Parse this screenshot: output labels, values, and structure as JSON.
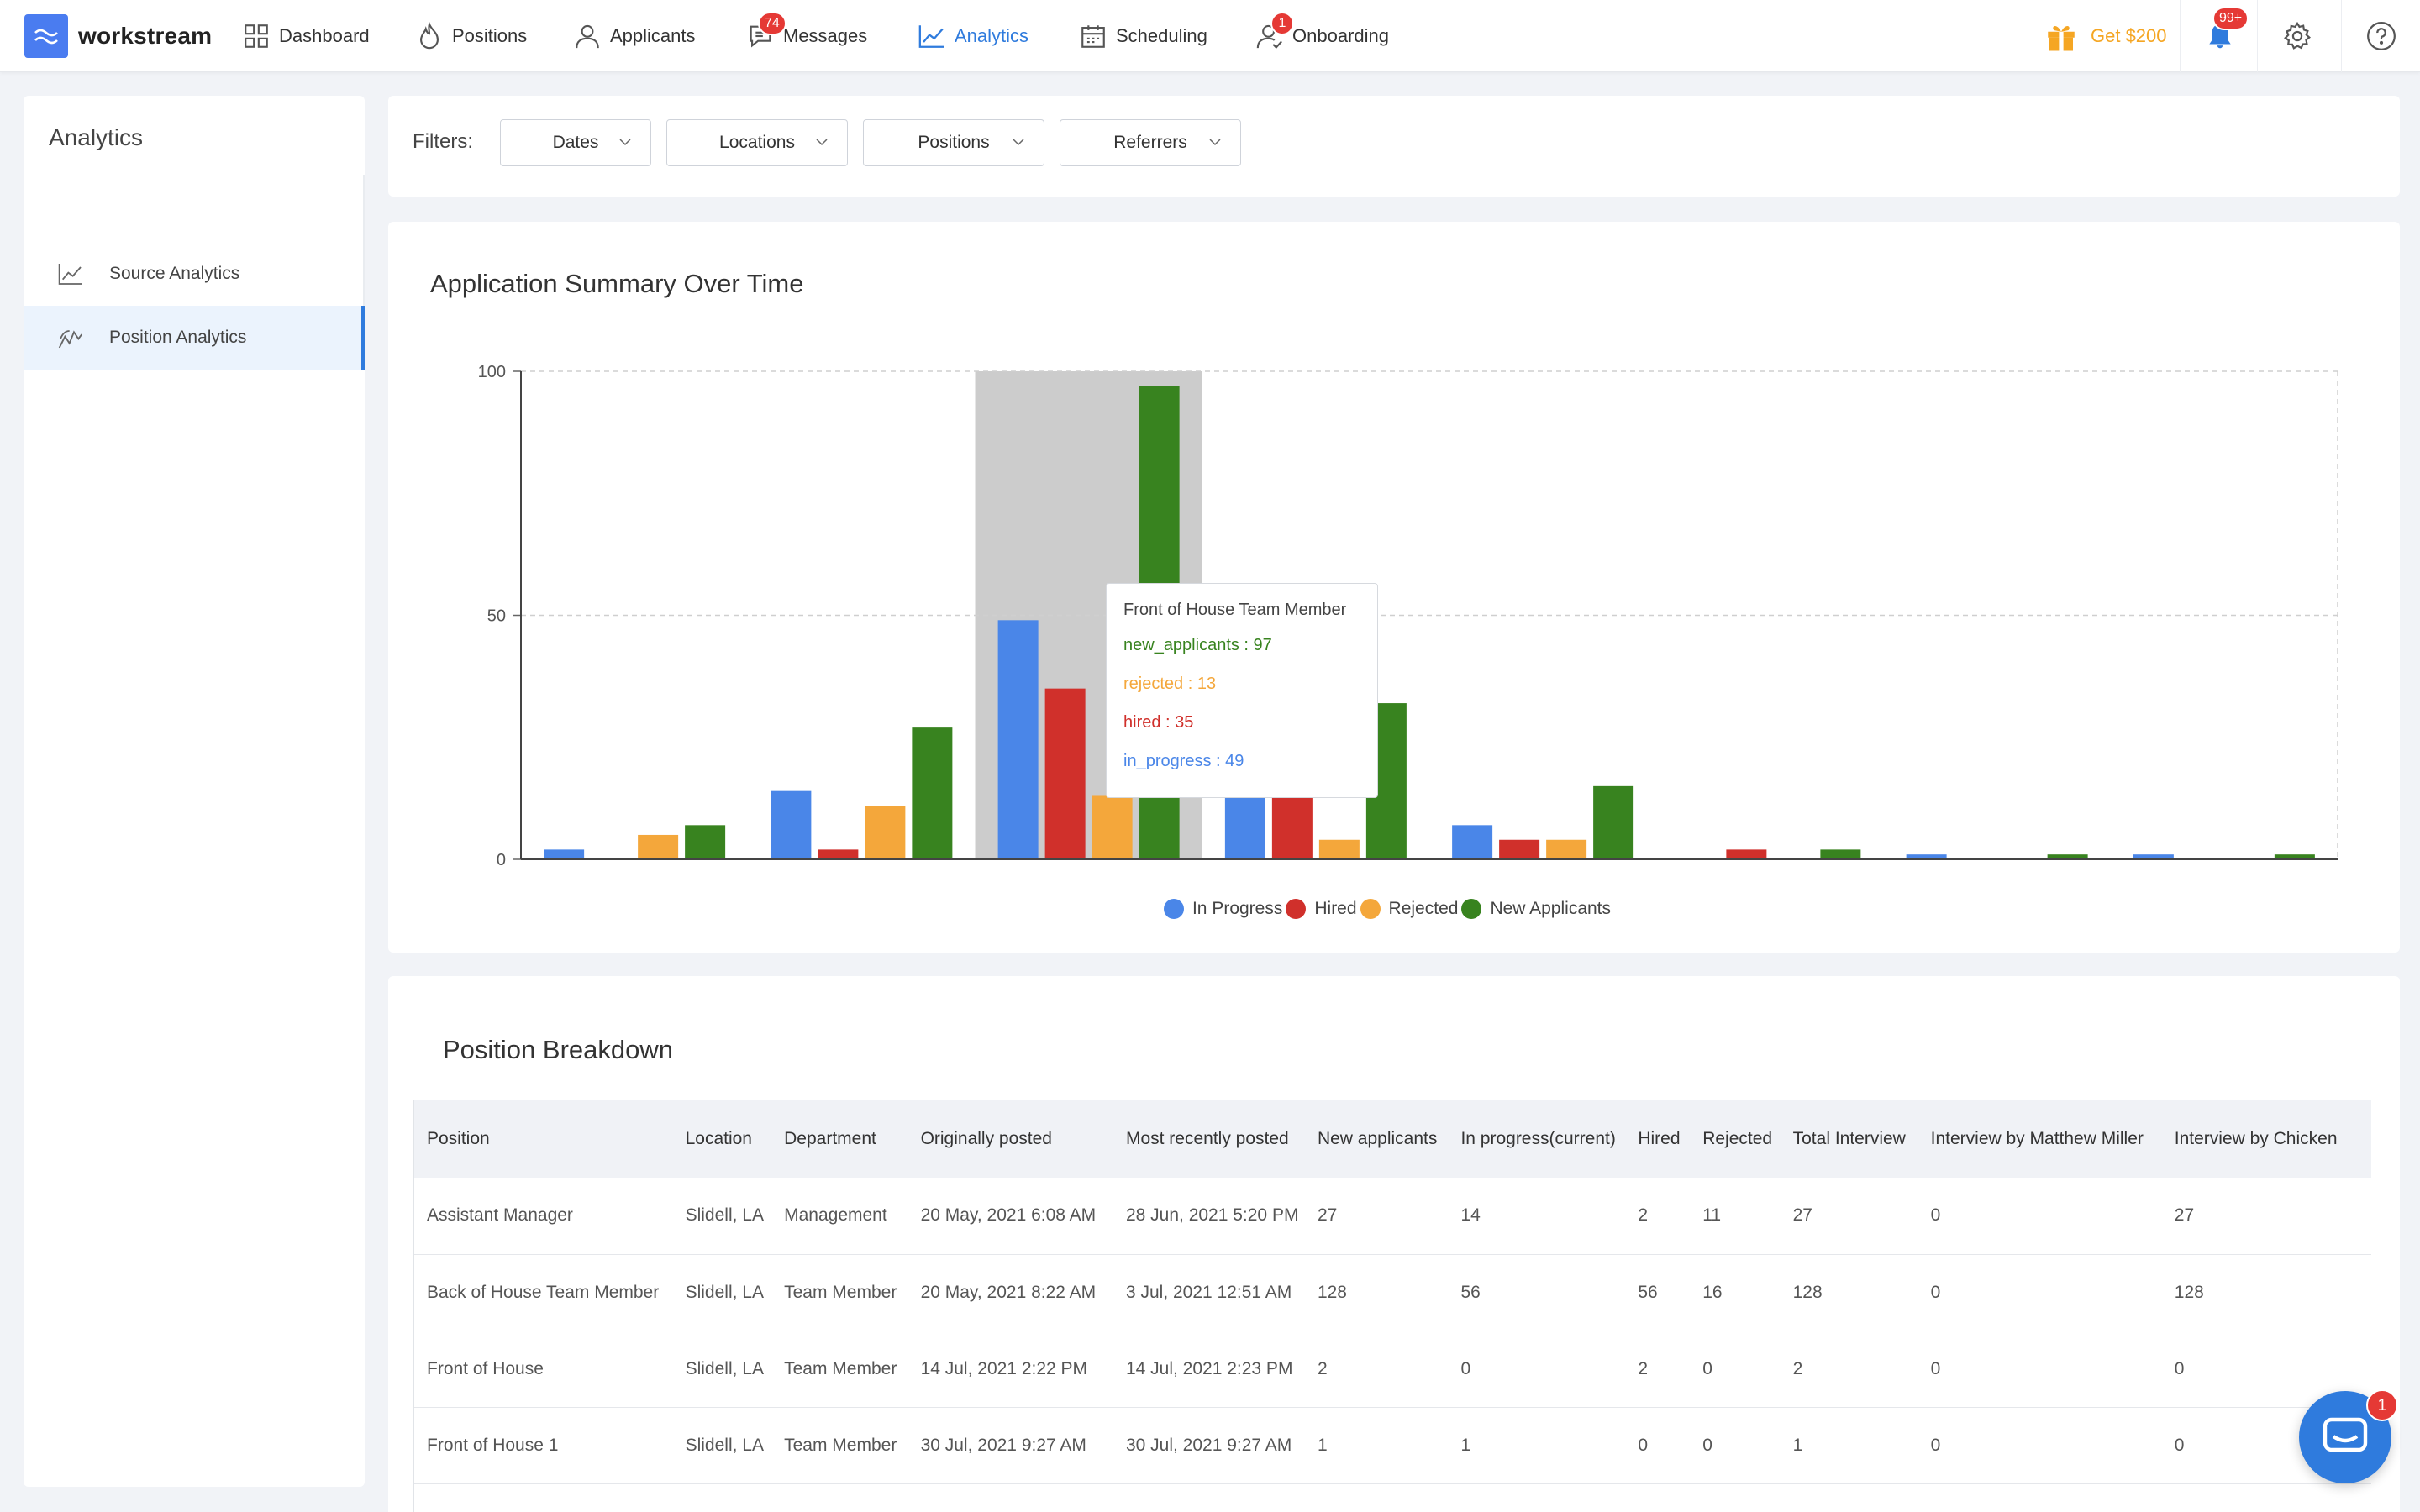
{
  "brand": {
    "name": "workstream"
  },
  "nav": {
    "items": [
      {
        "label": "Dashboard",
        "icon": "dashboard-icon"
      },
      {
        "label": "Positions",
        "icon": "flame-icon"
      },
      {
        "label": "Applicants",
        "icon": "user-icon"
      },
      {
        "label": "Messages",
        "icon": "chat-icon",
        "badge": "74"
      },
      {
        "label": "Analytics",
        "icon": "line-chart-icon",
        "active": true
      },
      {
        "label": "Scheduling",
        "icon": "calendar-icon"
      },
      {
        "label": "Onboarding",
        "icon": "user-check-icon",
        "badge": "1"
      }
    ],
    "promo_label": "Get $200",
    "notifications_badge": "99+"
  },
  "sidebar": {
    "title": "Analytics",
    "items": [
      {
        "label": "Source Analytics",
        "icon": "line-chart-icon"
      },
      {
        "label": "Position Analytics",
        "icon": "trend-icon",
        "active": true
      }
    ]
  },
  "filters": {
    "label": "Filters:",
    "dropdowns": [
      "Dates",
      "Locations",
      "Positions",
      "Referrers"
    ]
  },
  "chart_data": {
    "type": "bar",
    "title": "Application Summary Over Time",
    "xlabel": "",
    "ylabel": "",
    "ylim": [
      0,
      100
    ],
    "yticks": [
      0,
      50,
      100
    ],
    "grid": true,
    "legend_position": "bottom",
    "categories": [
      "",
      "",
      "Front of House Team Member",
      "",
      "",
      "",
      "",
      ""
    ],
    "highlight_index": 2,
    "series": [
      {
        "name": "In Progress",
        "color": "#4a86e8",
        "values": [
          2,
          14,
          49,
          13,
          7,
          0,
          1,
          1
        ]
      },
      {
        "name": "Hired",
        "color": "#d0302b",
        "values": [
          0,
          2,
          35,
          13,
          4,
          2,
          0,
          0
        ]
      },
      {
        "name": "Rejected",
        "color": "#f4a73b",
        "values": [
          5,
          11,
          13,
          4,
          4,
          0,
          0,
          0
        ]
      },
      {
        "name": "New Applicants",
        "color": "#38831f",
        "values": [
          7,
          27,
          97,
          32,
          15,
          2,
          1,
          1
        ]
      }
    ],
    "tooltip": {
      "title": "Front of House Team Member",
      "lines": [
        {
          "text": "new_applicants : 97",
          "color": "#38831f"
        },
        {
          "text": "rejected : 13",
          "color": "#f4a73b"
        },
        {
          "text": "hired : 35",
          "color": "#d0302b"
        },
        {
          "text": "in_progress : 49",
          "color": "#4a86e8"
        }
      ]
    }
  },
  "breakdown": {
    "title": "Position Breakdown",
    "columns": [
      "Position",
      "Location",
      "Department",
      "Originally posted",
      "Most recently posted",
      "New applicants",
      "In progress(current)",
      "Hired",
      "Rejected",
      "Total Interview",
      "Interview by Matthew Miller",
      "Interview by Chicken"
    ],
    "rows": [
      [
        "Assistant Manager",
        "Slidell, LA",
        "Management",
        "20 May, 2021 6:08 AM",
        "28 Jun, 2021 5:20 PM",
        "27",
        "14",
        "2",
        "11",
        "27",
        "0",
        "27"
      ],
      [
        "Back of House Team Member",
        "Slidell, LA",
        "Team Member",
        "20 May, 2021 8:22 AM",
        "3 Jul, 2021 12:51 AM",
        "128",
        "56",
        "56",
        "16",
        "128",
        "0",
        "128"
      ],
      [
        "Front of House",
        "Slidell, LA",
        "Team Member",
        "14 Jul, 2021 2:22 PM",
        "14 Jul, 2021 2:23 PM",
        "2",
        "0",
        "2",
        "0",
        "2",
        "0",
        "0"
      ],
      [
        "Front of House 1",
        "Slidell, LA",
        "Team Member",
        "30 Jul, 2021 9:27 AM",
        "30 Jul, 2021 9:27 AM",
        "1",
        "1",
        "0",
        "0",
        "1",
        "0",
        "0"
      ]
    ]
  },
  "chat": {
    "badge": "1"
  }
}
